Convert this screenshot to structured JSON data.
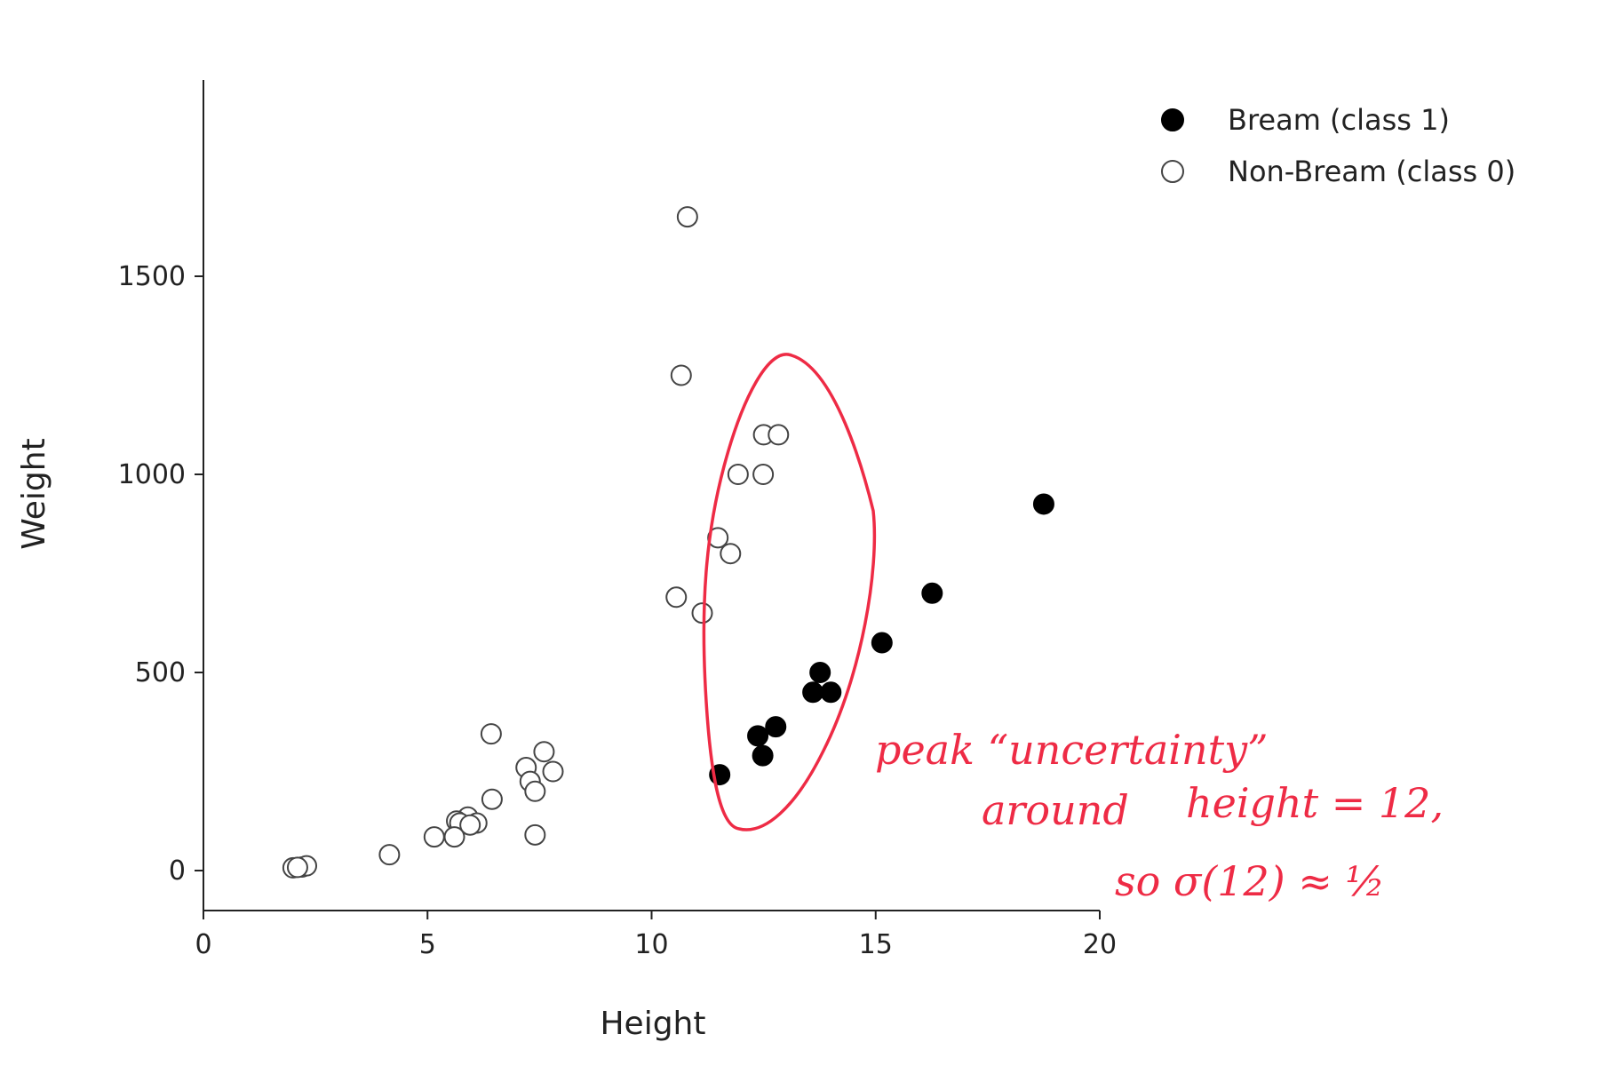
{
  "chart_data": {
    "type": "scatter",
    "xlabel": "Height",
    "ylabel": "Weight",
    "xlim": [
      0,
      20
    ],
    "ylim": [
      -100,
      2000
    ],
    "x_ticks": [
      0,
      5,
      10,
      15,
      20
    ],
    "y_ticks": [
      0,
      500,
      1000,
      1500
    ],
    "grid": false,
    "legend_position": "top-right",
    "series": [
      {
        "name": "Bream (class 1)",
        "marker": "filled-circle",
        "color": "#000000",
        "points": [
          [
            11.52,
            242
          ],
          [
            12.37,
            340
          ],
          [
            12.48,
            290
          ],
          [
            12.77,
            363
          ],
          [
            13.6,
            450
          ],
          [
            13.76,
            500
          ],
          [
            14.0,
            450
          ],
          [
            15.14,
            575
          ],
          [
            16.26,
            700
          ],
          [
            18.75,
            925
          ]
        ]
      },
      {
        "name": "Non-Bream (class 0)",
        "marker": "open-circle",
        "color": "#444444",
        "points": [
          [
            10.8,
            1650
          ],
          [
            10.66,
            1250
          ],
          [
            12.5,
            1100
          ],
          [
            12.83,
            1100
          ],
          [
            11.93,
            1000
          ],
          [
            12.49,
            1000
          ],
          [
            11.48,
            840
          ],
          [
            11.76,
            800
          ],
          [
            10.55,
            690
          ],
          [
            11.13,
            650
          ],
          [
            6.42,
            345
          ],
          [
            7.6,
            300
          ],
          [
            7.2,
            260
          ],
          [
            7.8,
            250
          ],
          [
            7.29,
            225
          ],
          [
            7.4,
            200
          ],
          [
            6.44,
            180
          ],
          [
            5.9,
            135
          ],
          [
            6.1,
            120
          ],
          [
            5.65,
            125
          ],
          [
            5.72,
            120
          ],
          [
            5.95,
            115
          ],
          [
            5.15,
            85
          ],
          [
            5.6,
            85
          ],
          [
            7.4,
            90
          ],
          [
            4.15,
            40
          ],
          [
            2.0,
            7
          ],
          [
            2.2,
            9
          ],
          [
            2.3,
            12
          ],
          [
            2.1,
            8
          ]
        ]
      }
    ]
  },
  "annotation": {
    "color": "#ee2b45",
    "lines": [
      "peak “uncertainty”",
      "around",
      "height = 12,",
      "so  σ(12) ≈ ½"
    ]
  }
}
